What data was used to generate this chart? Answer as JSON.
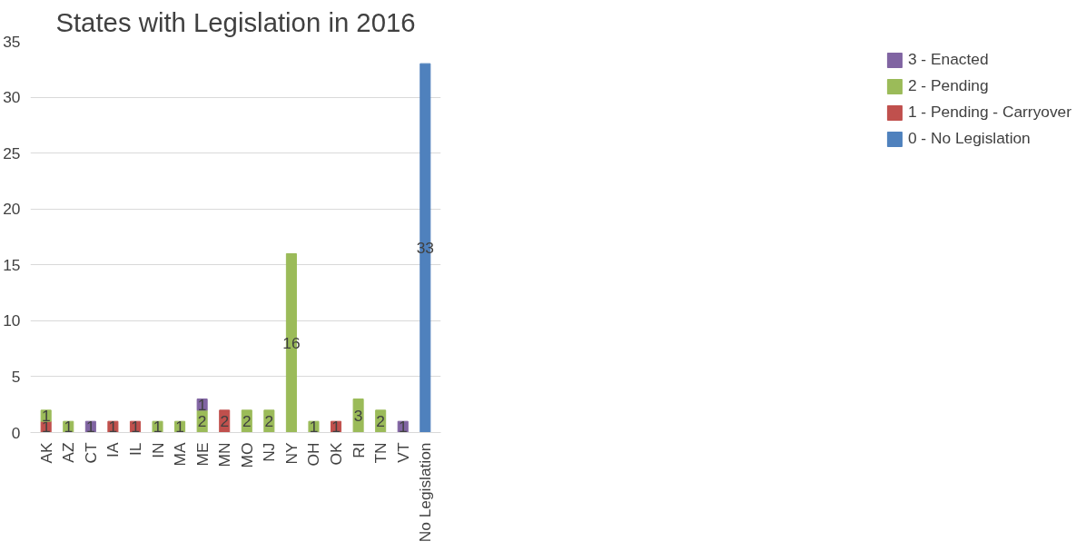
{
  "chart_data": {
    "type": "bar",
    "title": "States with Legislation in 2016",
    "stacked": true,
    "data_labels": true,
    "legend": "right",
    "grid": "y",
    "categories": [
      "AK",
      "AZ",
      "CT",
      "IA",
      "IL",
      "IN",
      "MA",
      "ME",
      "MN",
      "MO",
      "NJ",
      "NY",
      "OH",
      "OK",
      "RI",
      "TN",
      "VT",
      "No Legislation"
    ],
    "ylim": [
      0,
      35
    ],
    "yticks": [
      0,
      5,
      10,
      15,
      20,
      25,
      30,
      35
    ],
    "series": [
      {
        "name": "0 - No Legislation",
        "color": "#4f81bd",
        "values": [
          null,
          null,
          null,
          null,
          null,
          null,
          null,
          null,
          null,
          null,
          null,
          null,
          null,
          null,
          null,
          null,
          null,
          33
        ]
      },
      {
        "name": "1 - Pending - Carryover",
        "color": "#c0504d",
        "values": [
          1,
          null,
          null,
          1,
          1,
          null,
          null,
          null,
          2,
          null,
          null,
          null,
          null,
          1,
          null,
          null,
          null,
          null
        ]
      },
      {
        "name": "2 - Pending",
        "color": "#9bbb59",
        "values": [
          1,
          1,
          null,
          null,
          null,
          1,
          1,
          2,
          null,
          2,
          2,
          16,
          1,
          null,
          3,
          2,
          null,
          null
        ]
      },
      {
        "name": "3 - Enacted",
        "color": "#8064a2",
        "values": [
          null,
          null,
          1,
          null,
          null,
          null,
          null,
          1,
          null,
          null,
          null,
          null,
          null,
          null,
          null,
          null,
          1,
          null
        ]
      }
    ]
  }
}
